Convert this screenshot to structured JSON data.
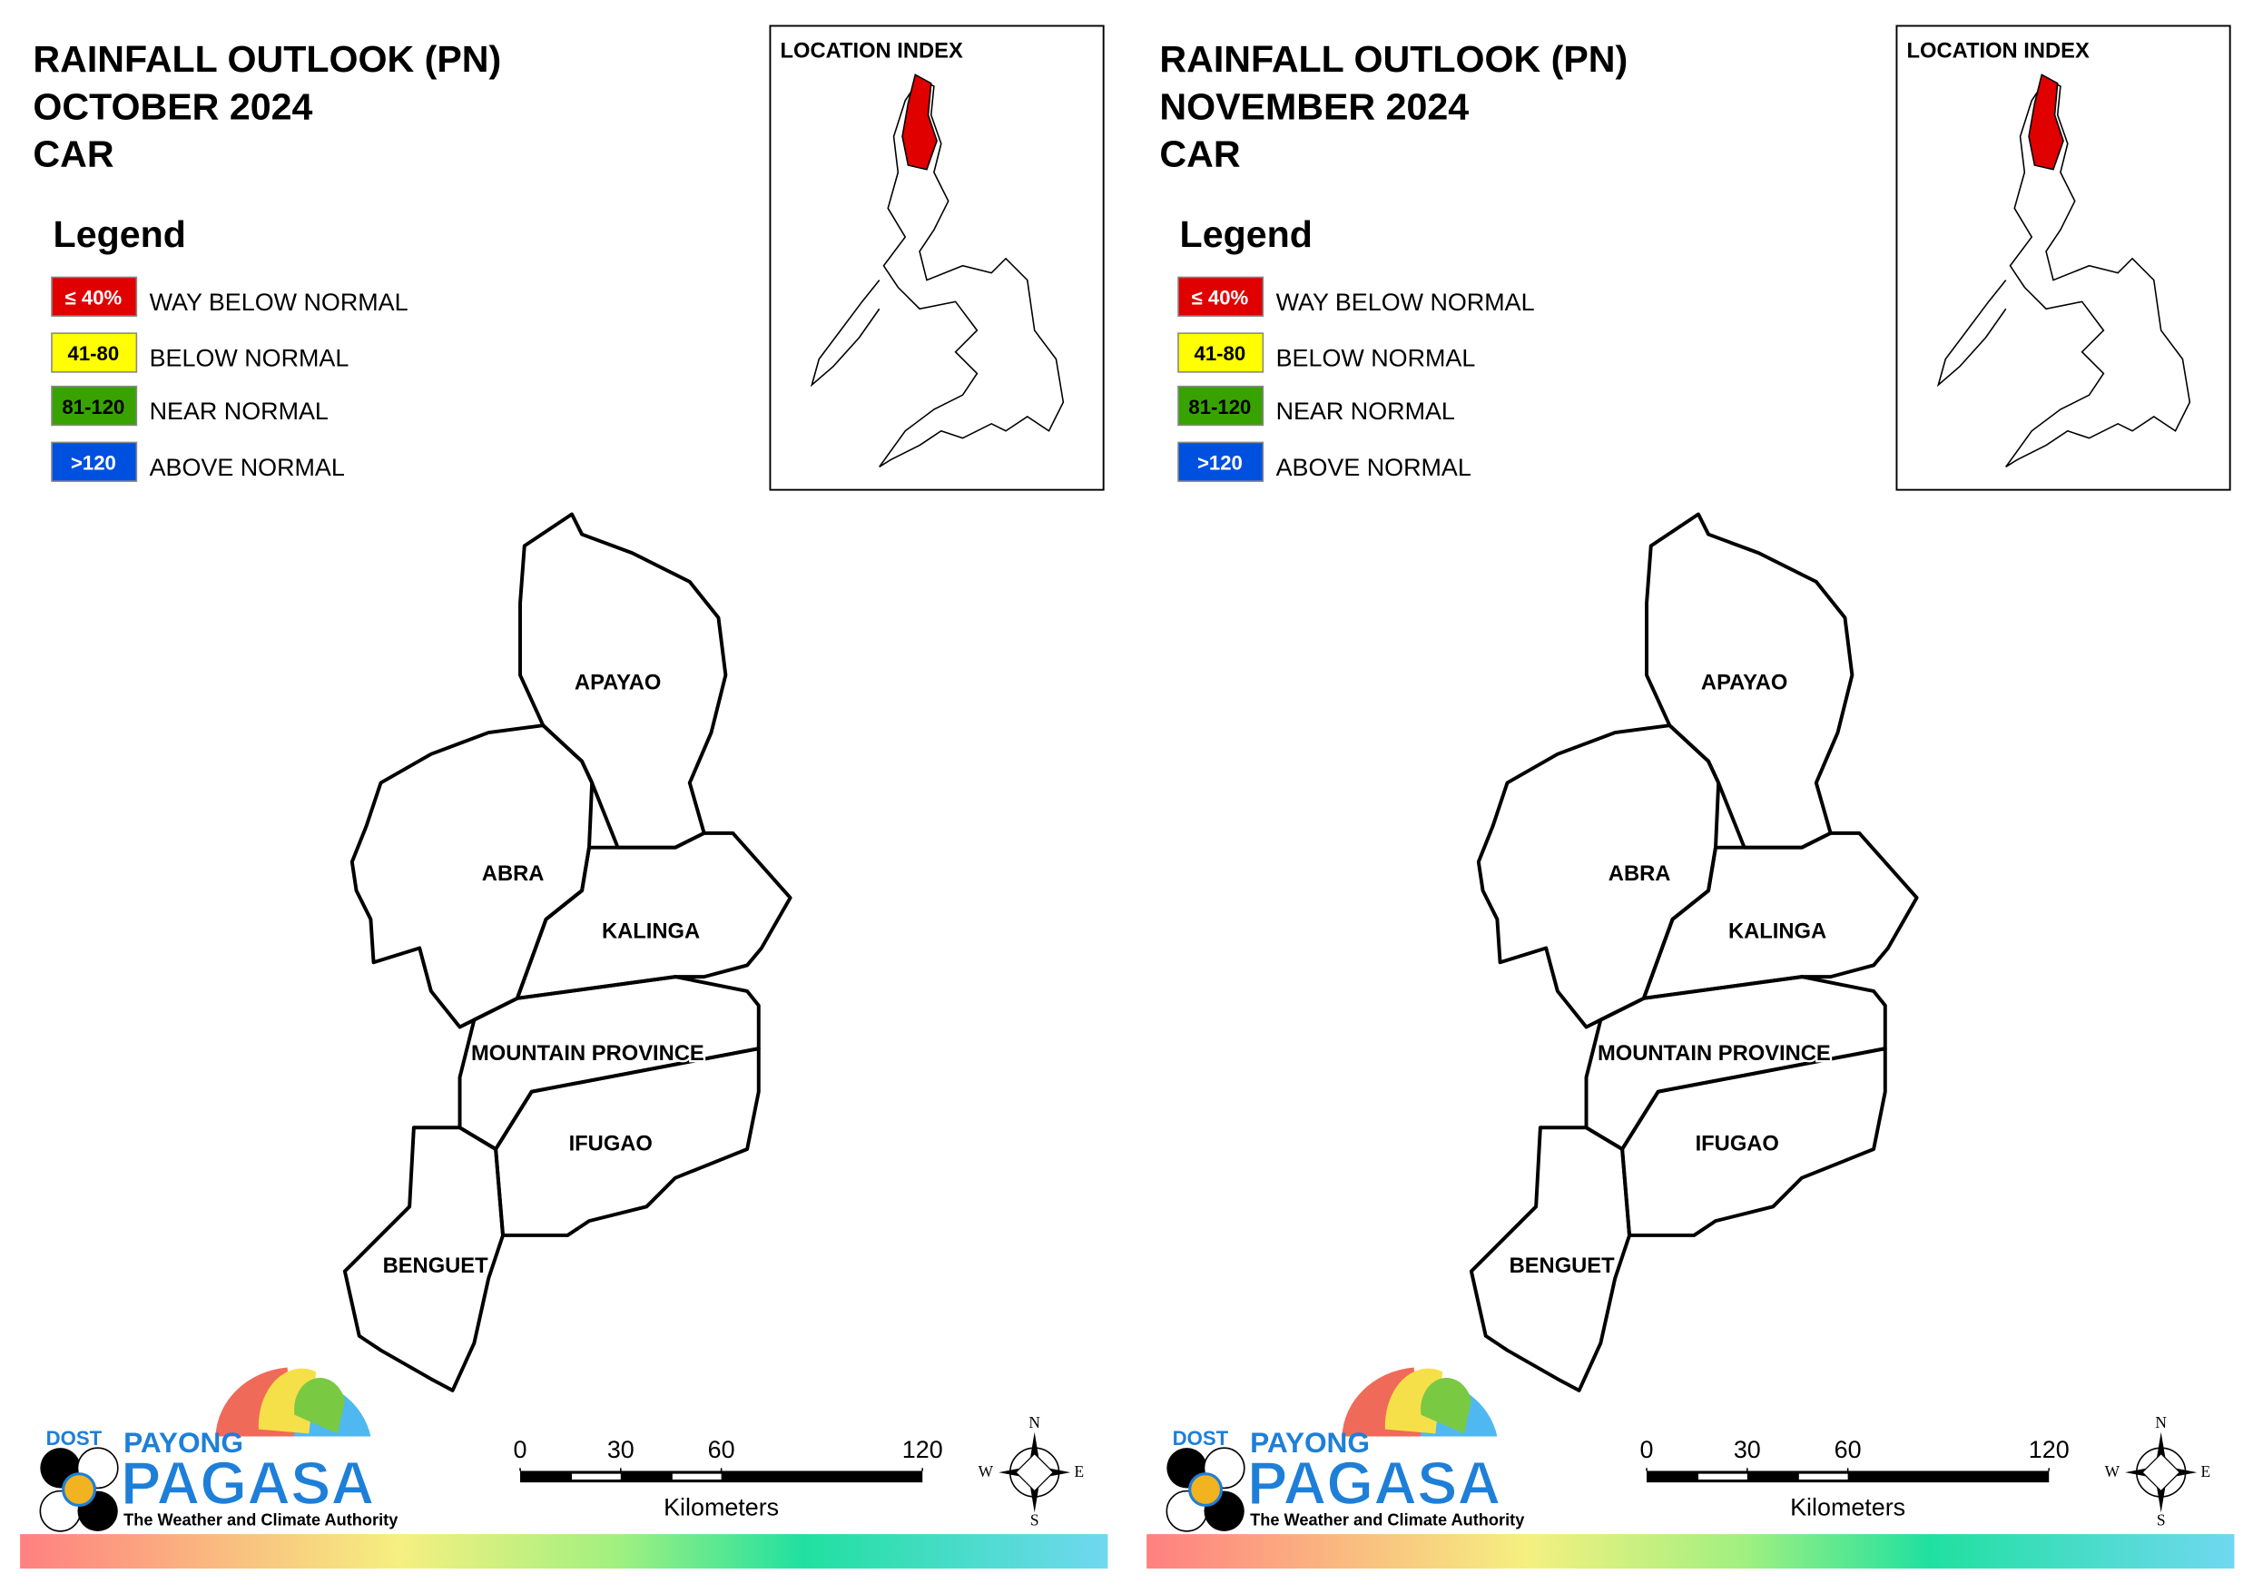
{
  "panels": [
    {
      "title": [
        "RAINFALL OUTLOOK (PN)",
        "OCTOBER 2024",
        "CAR"
      ],
      "legend": {
        "title": "Legend",
        "items": [
          {
            "swatch": "≤ 40%",
            "label": "WAY BELOW NORMAL",
            "color": "#e00000"
          },
          {
            "swatch": "41-80",
            "label": "BELOW NORMAL",
            "color": "#ffff00"
          },
          {
            "swatch": "81-120",
            "label": "NEAR NORMAL",
            "color": "#38a300"
          },
          {
            "swatch": ">120",
            "label": "ABOVE NORMAL",
            "color": "#0050e0"
          }
        ]
      },
      "location_index": "LOCATION INDEX",
      "provinces": [
        "APAYAO",
        "ABRA",
        "KALINGA",
        "MOUNTAIN PROVINCE",
        "IFUGAO",
        "BENGUET"
      ],
      "scale": {
        "ticks": [
          0,
          30,
          60,
          120
        ],
        "unit": "Kilometers"
      },
      "compass": {
        "n": "N",
        "e": "E",
        "s": "S",
        "w": "W"
      },
      "logo": {
        "agency": "DOST",
        "top": "PAYONG",
        "name": "PAGASA",
        "tagline": "The Weather and Climate Authority"
      }
    },
    {
      "title": [
        "RAINFALL OUTLOOK (PN)",
        "NOVEMBER 2024",
        "CAR"
      ],
      "legend": {
        "title": "Legend",
        "items": [
          {
            "swatch": "≤ 40%",
            "label": "WAY BELOW NORMAL",
            "color": "#e00000"
          },
          {
            "swatch": "41-80",
            "label": "BELOW NORMAL",
            "color": "#ffff00"
          },
          {
            "swatch": "81-120",
            "label": "NEAR NORMAL",
            "color": "#38a300"
          },
          {
            "swatch": ">120",
            "label": "ABOVE NORMAL",
            "color": "#0050e0"
          }
        ]
      },
      "location_index": "LOCATION INDEX",
      "provinces": [
        "APAYAO",
        "ABRA",
        "KALINGA",
        "MOUNTAIN PROVINCE",
        "IFUGAO",
        "BENGUET"
      ],
      "scale": {
        "ticks": [
          0,
          30,
          60,
          120
        ],
        "unit": "Kilometers"
      },
      "compass": {
        "n": "N",
        "e": "E",
        "s": "S",
        "w": "W"
      },
      "logo": {
        "agency": "DOST",
        "top": "PAYONG",
        "name": "PAGASA",
        "tagline": "The Weather and Climate Authority"
      }
    }
  ]
}
